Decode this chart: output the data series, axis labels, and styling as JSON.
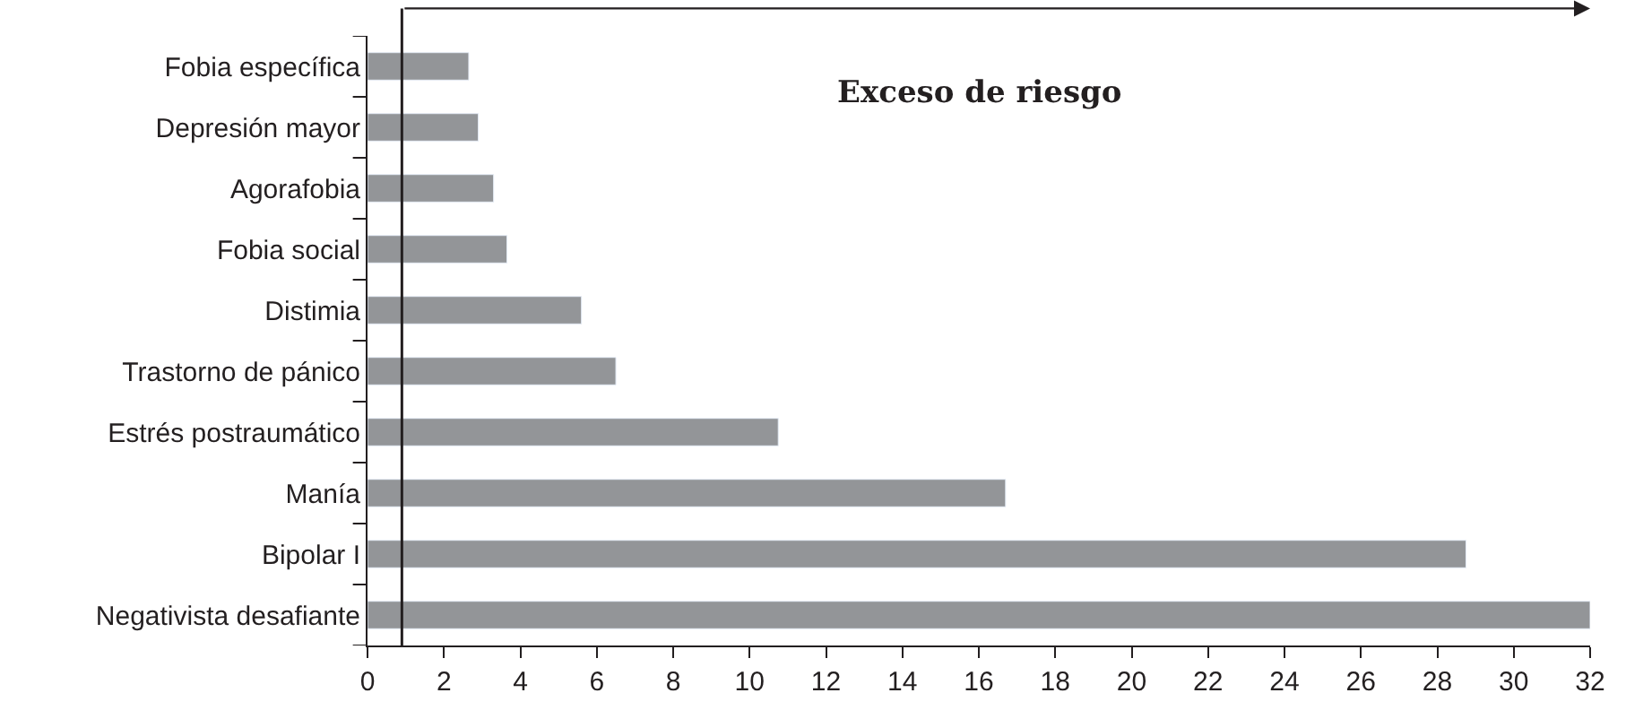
{
  "chart_data": {
    "type": "bar",
    "orientation": "horizontal",
    "categories": [
      "Fobia específica",
      "Depresión mayor",
      "Agorafobia",
      "Fobia social",
      "Distimia",
      "Trastorno de pánico",
      "Estrés postraumático",
      "Manía",
      "Bipolar I",
      "Negativista desafiante"
    ],
    "values": [
      2.65,
      2.9,
      3.3,
      3.65,
      5.6,
      6.5,
      10.75,
      16.7,
      28.75,
      32
    ],
    "color": "#939598",
    "xlim": [
      0,
      32
    ],
    "xticks": [
      0,
      2,
      4,
      6,
      8,
      10,
      12,
      14,
      16,
      18,
      20,
      22,
      24,
      26,
      28,
      30,
      32
    ],
    "ref_lines": [
      {
        "axis": "x",
        "value": 0.9,
        "color": "#231f20"
      }
    ],
    "annotations": [
      "Exceso de riesgo"
    ]
  }
}
